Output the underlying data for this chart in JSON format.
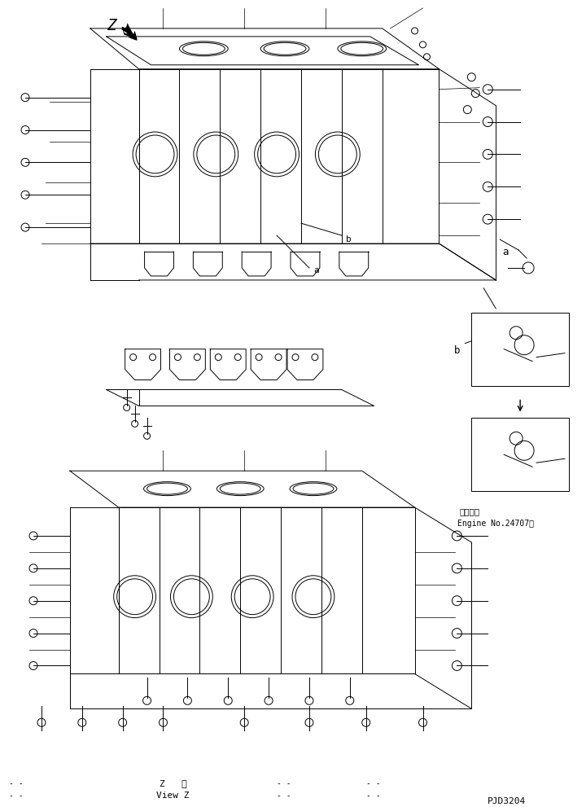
{
  "bg_color": "#ffffff",
  "line_color": "#000000",
  "fig_width": 7.2,
  "fig_height": 9.91,
  "dpi": 100,
  "bottom_label_1": "Z   视",
  "bottom_label_2": "View Z",
  "engine_note_ja": "適用号機",
  "engine_note_en": "Engine No.24707～",
  "part_id": "PJD3204",
  "label_a": "a",
  "label_b": "b",
  "label_Z": "Z"
}
